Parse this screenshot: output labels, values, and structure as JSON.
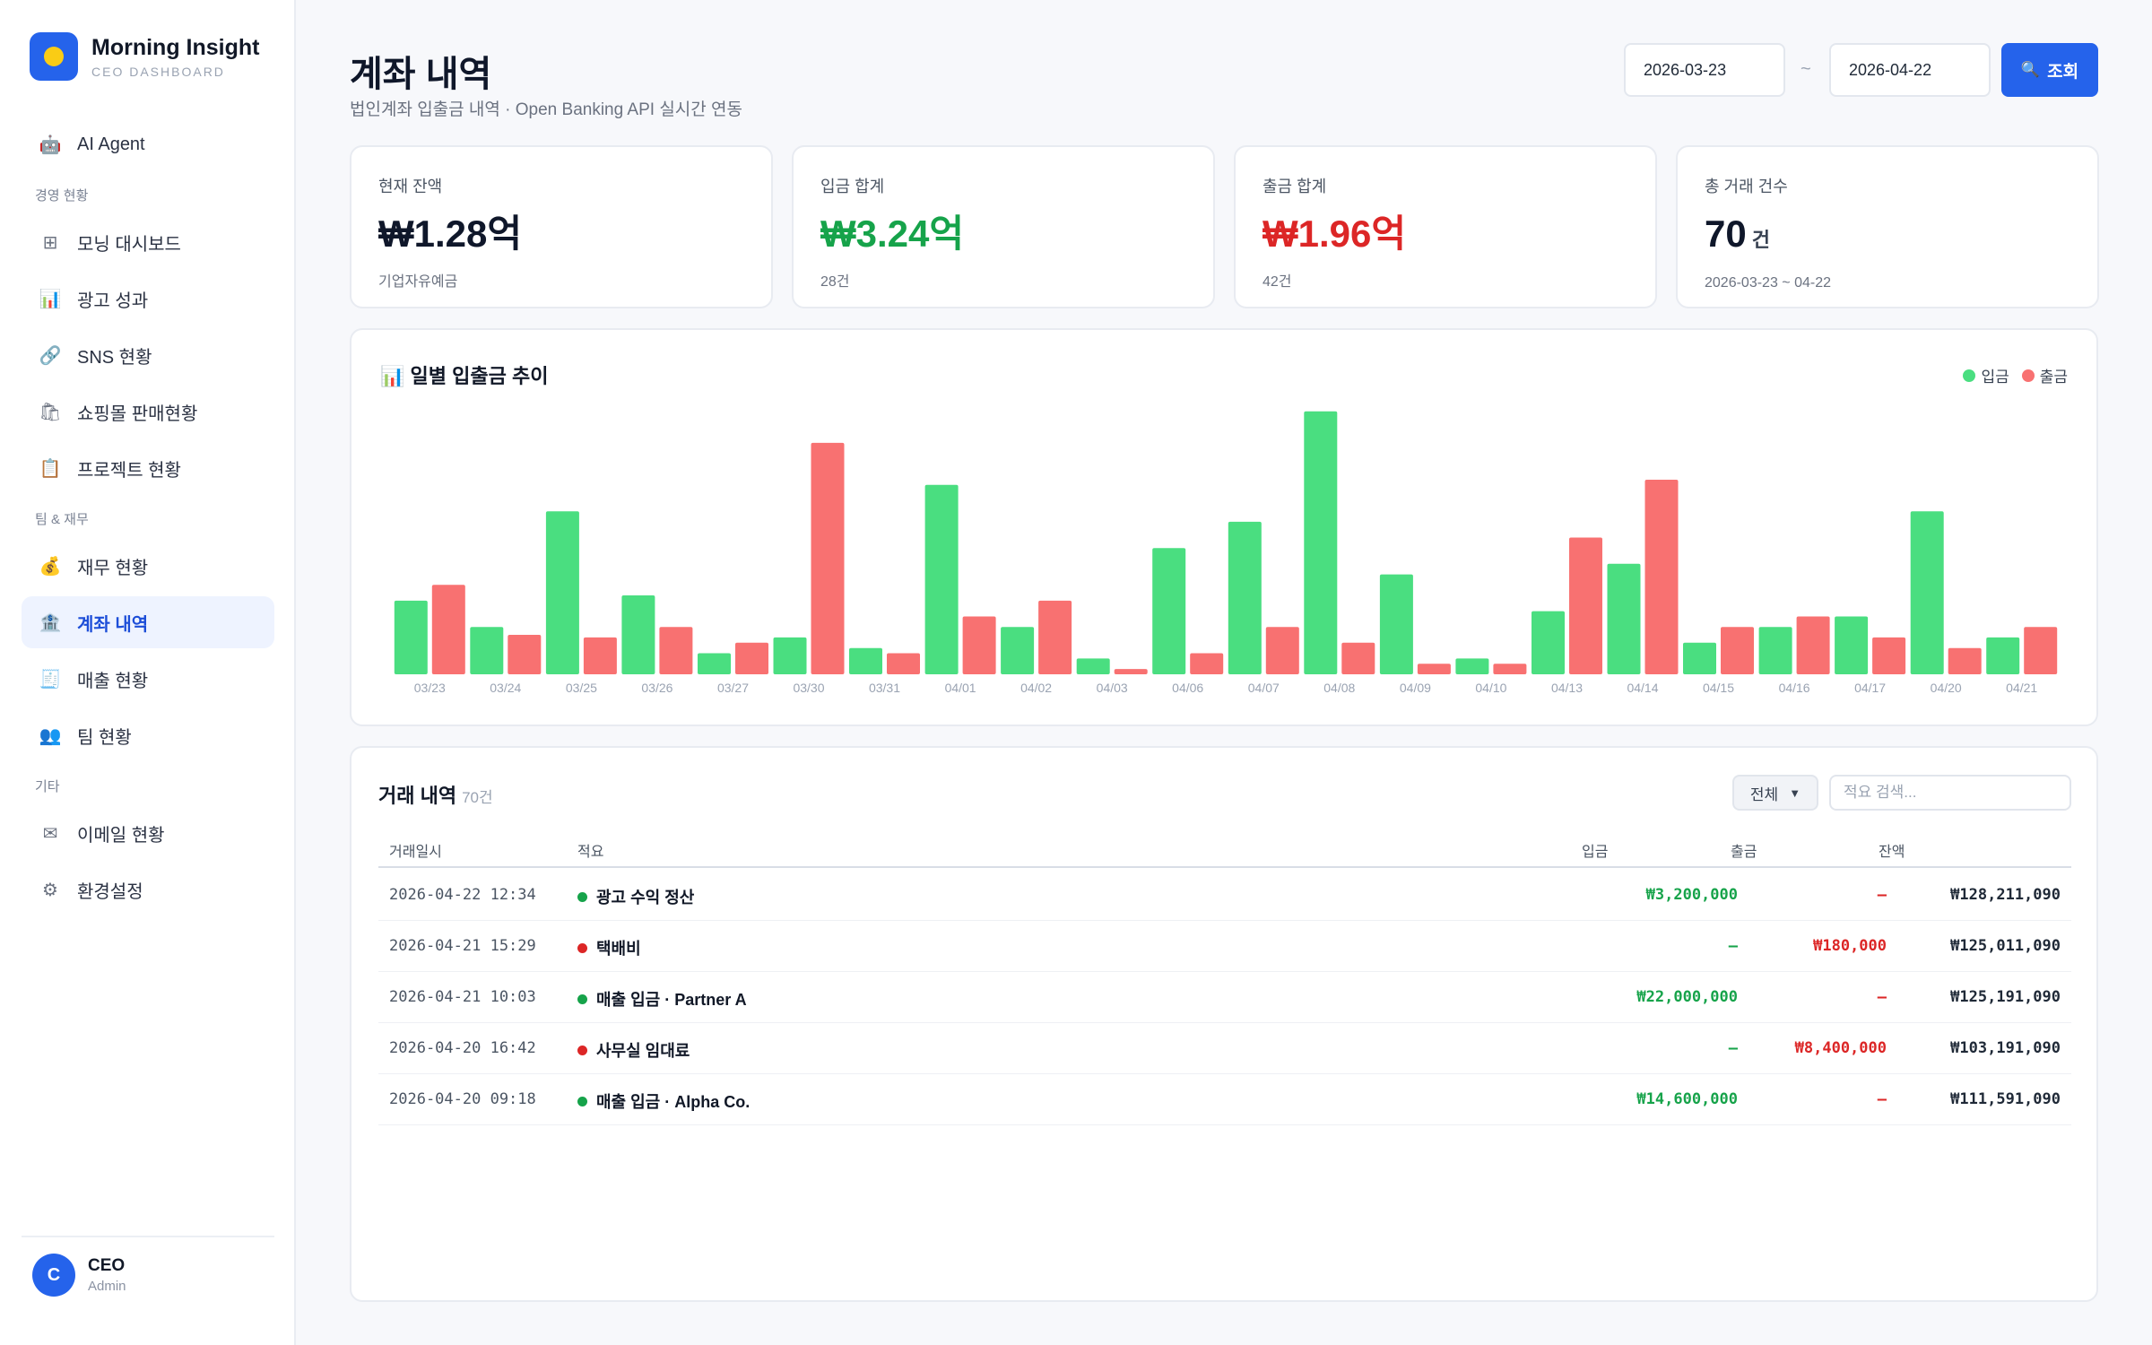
{
  "brand": {
    "name": "Morning Insight",
    "subtitle": "CEO DASHBOARD"
  },
  "sidebar": {
    "top_item": {
      "icon": "robot-icon",
      "label": "AI Agent"
    },
    "sections": [
      {
        "title": "경영 현황",
        "items": [
          {
            "label": "모닝 대시보드",
            "icon": "grid-icon"
          },
          {
            "label": "광고 성과",
            "icon": "bar-chart-icon"
          },
          {
            "label": "SNS 현황",
            "icon": "link-icon"
          },
          {
            "label": "쇼핑몰 판매현황",
            "icon": "shopping-bag-icon"
          },
          {
            "label": "프로젝트 현황",
            "icon": "clipboard-icon"
          }
        ]
      },
      {
        "title": "팀 & 재무",
        "items": [
          {
            "label": "재무 현황",
            "icon": "money-bag-icon"
          },
          {
            "label": "계좌 내역",
            "icon": "bank-icon",
            "active": true
          },
          {
            "label": "매출 현황",
            "icon": "receipt-icon"
          },
          {
            "label": "팀 현황",
            "icon": "people-icon"
          }
        ]
      },
      {
        "title": "기타",
        "items": [
          {
            "label": "이메일 현황",
            "icon": "mail-icon"
          },
          {
            "label": "환경설정",
            "icon": "gear-icon"
          }
        ]
      }
    ]
  },
  "user": {
    "initial": "C",
    "name": "CEO",
    "role": "Admin"
  },
  "header": {
    "title": "계좌 내역",
    "subtitle": "법인계좌 입출금 내역 · Open Banking API 실시간 연동",
    "date_from": "2026-03-23",
    "date_separator": "~",
    "date_to": "2026-04-22",
    "query_button": "조회",
    "query_icon": "search-icon"
  },
  "kpis": [
    {
      "label": "현재 잔액",
      "value": "₩1.28억",
      "unit": "",
      "note": "기업자유예금",
      "color": "#0f172a"
    },
    {
      "label": "입금 합계",
      "value": "₩3.24억",
      "unit": "",
      "note": "28건",
      "color": "#16a34a"
    },
    {
      "label": "출금 합계",
      "value": "₩1.96억",
      "unit": "",
      "note": "42건",
      "color": "#dc2626"
    },
    {
      "label": "총 거래 건수",
      "value": "70",
      "unit": "건",
      "note": "2026-03-23 ~ 04-22",
      "color": "#0f172a"
    }
  ],
  "chart": {
    "title": "일별 입출금 추이",
    "title_icon": "bar-chart-icon",
    "legend": {
      "in": "입금",
      "out": "출금"
    },
    "colors": {
      "in": "#4ade80",
      "out": "#f87171"
    }
  },
  "chart_data": {
    "type": "bar",
    "categories": [
      "03/23",
      "03/24",
      "03/25",
      "03/26",
      "03/27",
      "03/30",
      "03/31",
      "04/01",
      "04/02",
      "04/03",
      "04/06",
      "04/07",
      "04/08",
      "04/09",
      "04/10",
      "04/13",
      "04/14",
      "04/15",
      "04/16",
      "04/17",
      "04/20",
      "04/21"
    ],
    "series": [
      {
        "name": "입금",
        "values": [
          14,
          9,
          31,
          15,
          4,
          7,
          5,
          36,
          9,
          3,
          24,
          29,
          50,
          19,
          3,
          12,
          21,
          6,
          9,
          11,
          31,
          7
        ]
      },
      {
        "name": "출금",
        "values": [
          17,
          7.5,
          7,
          9,
          6,
          44,
          4,
          11,
          14,
          1,
          4,
          9,
          6,
          2,
          2,
          26,
          37,
          9,
          11,
          7,
          5,
          9
        ]
      }
    ],
    "ylim": [
      0,
      52
    ],
    "grid": false,
    "legend_position": "top-right"
  },
  "table": {
    "title": "거래 내역",
    "count": "70건",
    "filter_value": "전체",
    "search_placeholder": "적요 검색...",
    "columns": {
      "date": "거래일시",
      "desc": "적요",
      "in": "입금",
      "out": "출금",
      "balance": "잔액"
    },
    "rows": [
      {
        "date": "2026-04-22 12:34",
        "desc": "광고 수익 정산",
        "type": "in",
        "in": "₩3,200,000",
        "out": "—",
        "balance": "₩128,211,090"
      },
      {
        "date": "2026-04-21 15:29",
        "desc": "택배비",
        "type": "out",
        "in": "—",
        "out": "₩180,000",
        "balance": "₩125,011,090"
      },
      {
        "date": "2026-04-21 10:03",
        "desc": "매출 입금 · Partner A",
        "type": "in",
        "in": "₩22,000,000",
        "out": "—",
        "balance": "₩125,191,090"
      },
      {
        "date": "2026-04-20 16:42",
        "desc": "사무실 임대료",
        "type": "out",
        "in": "—",
        "out": "₩8,400,000",
        "balance": "₩103,191,090"
      },
      {
        "date": "2026-04-20 09:18",
        "desc": "매출 입금 · Alpha Co.",
        "type": "in",
        "in": "₩14,600,000",
        "out": "—",
        "balance": "₩111,591,090"
      }
    ]
  }
}
